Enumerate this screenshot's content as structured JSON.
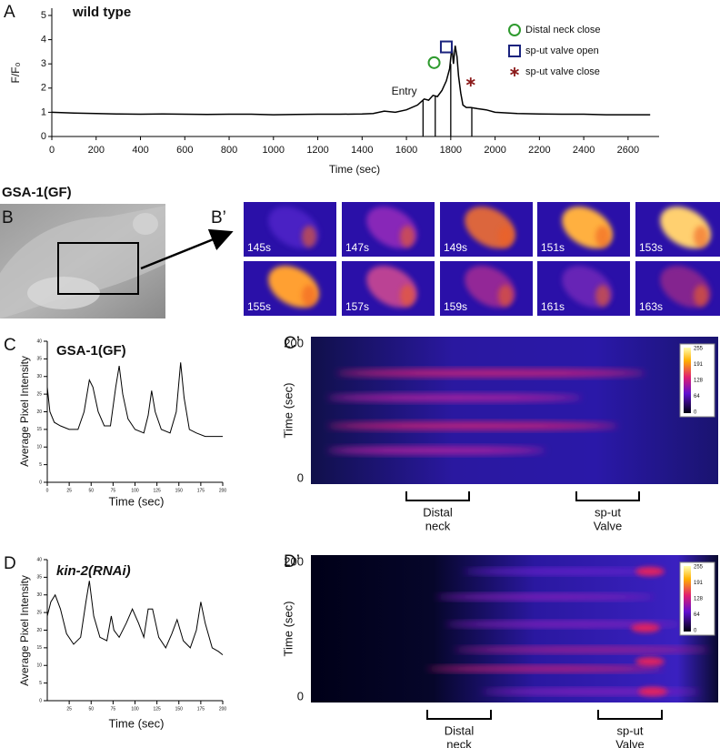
{
  "chart_data": [
    {
      "type": "line",
      "label": "A",
      "title": "wild type",
      "xlabel": "Time (sec)",
      "ylabel": "F/F₀",
      "color": "#000000",
      "x": [
        0,
        100,
        200,
        300,
        400,
        500,
        600,
        700,
        800,
        900,
        1000,
        1100,
        1200,
        1300,
        1400,
        1450,
        1500,
        1550,
        1600,
        1650,
        1680,
        1700,
        1720,
        1740,
        1760,
        1780,
        1795,
        1805,
        1812,
        1820,
        1828,
        1835,
        1845,
        1855,
        1870,
        1890,
        1920,
        1960,
        2000,
        2100,
        2200,
        2300,
        2400,
        2500,
        2600,
        2700
      ],
      "values": [
        1.0,
        0.97,
        0.95,
        0.93,
        0.92,
        0.93,
        0.92,
        0.91,
        0.92,
        0.92,
        0.9,
        0.91,
        0.92,
        0.92,
        0.93,
        0.95,
        1.05,
        1.0,
        1.1,
        1.3,
        1.55,
        1.5,
        1.7,
        1.65,
        1.9,
        2.3,
        2.8,
        3.7,
        3.0,
        3.75,
        3.3,
        2.5,
        1.8,
        1.3,
        1.2,
        1.2,
        1.15,
        1.1,
        1.0,
        0.95,
        0.93,
        0.92,
        0.92,
        0.9,
        0.9,
        0.9
      ],
      "xlim": [
        0,
        2740
      ],
      "ylim": [
        0,
        5.3
      ],
      "xticks": [
        0,
        200,
        400,
        600,
        800,
        1000,
        1200,
        1400,
        1600,
        1800,
        2000,
        2200,
        2400,
        2600
      ],
      "yticks": [
        0,
        1,
        2,
        3,
        4,
        5
      ],
      "event_lines": [
        {
          "x": 1675,
          "y": 1.5
        },
        {
          "x": 1730,
          "y": 1.65
        },
        {
          "x": 1800,
          "y": 3.0
        },
        {
          "x": 1895,
          "y": 1.2
        }
      ],
      "annotations": [
        {
          "text": "Entry",
          "x": 1590,
          "y": 1.85
        }
      ],
      "legend": [
        {
          "name": "Distal neck close",
          "symbol": "circle",
          "color": "#2e9a2e",
          "x": 1725,
          "y": 3.05
        },
        {
          "name": "sp-ut valve open",
          "symbol": "square",
          "color": "#1a237e",
          "x": 1780,
          "y": 3.7
        },
        {
          "name": "sp-ut valve close",
          "symbol": "asterisk",
          "color": "#8b1a1a",
          "x": 1890,
          "y": 2.25
        }
      ]
    },
    {
      "type": "line",
      "label": "C",
      "title": "GSA-1(GF)",
      "xlabel": "Time (sec)",
      "ylabel": "Average Pixel Intensity",
      "color": "#000000",
      "x": [
        0,
        3,
        8,
        15,
        25,
        35,
        42,
        48,
        52,
        58,
        65,
        72,
        78,
        82,
        86,
        92,
        100,
        110,
        115,
        119,
        123,
        130,
        140,
        147,
        152,
        156,
        162,
        170,
        180,
        190,
        200
      ],
      "values": [
        27,
        20,
        17,
        16,
        15,
        15,
        20,
        29,
        27,
        20,
        16,
        16,
        27,
        33,
        25,
        18,
        15,
        14,
        19,
        26,
        20,
        15,
        14,
        20,
        34,
        24,
        15,
        14,
        13,
        13,
        13
      ],
      "xlim": [
        0,
        200
      ],
      "ylim": [
        0,
        40
      ],
      "xticks": [
        0,
        25,
        50,
        75,
        100,
        125,
        150,
        175,
        200
      ],
      "yticks": [
        0,
        5,
        10,
        15,
        20,
        25,
        30,
        35,
        40
      ]
    },
    {
      "type": "line",
      "label": "D",
      "title": "kin-2(RNAi)",
      "xlabel": "Time (sec)",
      "ylabel": "Average Pixel Intensity",
      "color": "#000000",
      "x": [
        0,
        4,
        9,
        15,
        22,
        30,
        38,
        44,
        48,
        53,
        60,
        68,
        73,
        76,
        82,
        90,
        97,
        104,
        110,
        115,
        120,
        127,
        135,
        142,
        148,
        155,
        163,
        170,
        175,
        180,
        188,
        195,
        200
      ],
      "values": [
        24,
        28,
        30,
        26,
        19,
        16,
        18,
        28,
        34,
        24,
        18,
        17,
        24,
        20,
        18,
        22,
        26,
        22,
        18,
        26,
        26,
        18,
        15,
        19,
        23,
        17,
        15,
        20,
        28,
        22,
        15,
        14,
        13
      ],
      "xlim": [
        0,
        200
      ],
      "ylim": [
        0,
        40
      ],
      "xticks": [
        25,
        50,
        75,
        100,
        125,
        150,
        175,
        200
      ],
      "yticks": [
        0,
        5,
        10,
        15,
        20,
        25,
        30,
        35,
        40
      ]
    }
  ],
  "panels": {
    "B": {
      "label": "B",
      "title": "GSA-1(GF)"
    },
    "B_prime": {
      "label": "B’",
      "frames": [
        "145s",
        "147s",
        "149s",
        "151s",
        "153s",
        "155s",
        "157s",
        "159s",
        "161s",
        "163s"
      ]
    },
    "C_prime": {
      "label": "C’",
      "ylabel": "Time (sec)",
      "yticks": [
        "200",
        "0"
      ],
      "colorbar": [
        "255",
        "191",
        "128",
        "64",
        "0"
      ],
      "regions": [
        {
          "lines": [
            "Distal",
            "neck"
          ]
        },
        {
          "lines": [
            "sp-ut",
            "Valve"
          ]
        }
      ]
    },
    "D_prime": {
      "label": "D’",
      "ylabel": "Time (sec)",
      "yticks": [
        "200",
        "0"
      ],
      "colorbar": [
        "255",
        "191",
        "128",
        "64",
        "0"
      ],
      "regions": [
        {
          "lines": [
            "Distal",
            "neck"
          ]
        },
        {
          "lines": [
            "sp-ut",
            "Valve"
          ]
        }
      ]
    }
  }
}
